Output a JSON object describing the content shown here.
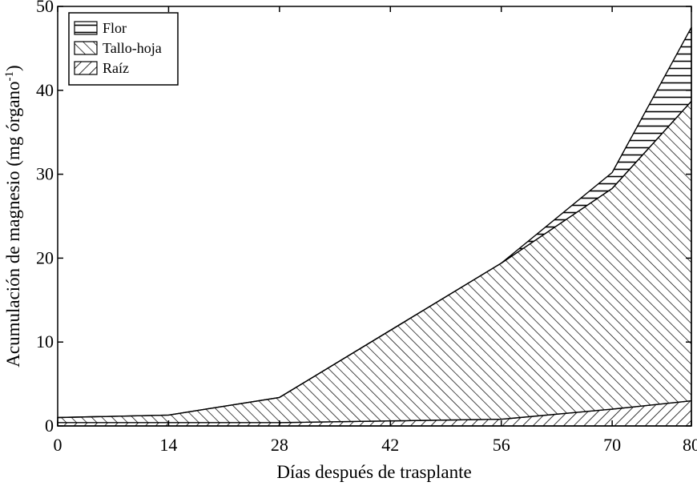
{
  "chart_data": {
    "type": "area",
    "stacked": true,
    "x": [
      0,
      14,
      28,
      56,
      70,
      80
    ],
    "series": [
      {
        "name": "Raíz",
        "values": [
          0.4,
          0.4,
          0.4,
          0.8,
          2.0,
          3.0
        ],
        "pattern": "diagonal-up"
      },
      {
        "name": "Tallo-hoja",
        "values": [
          0.6,
          0.9,
          3.0,
          18.6,
          26.3,
          35.7
        ],
        "pattern": "diagonal-down"
      },
      {
        "name": "Flor",
        "values": [
          0,
          0,
          0,
          0,
          1.9,
          8.8
        ],
        "pattern": "horizontal"
      }
    ],
    "ylabel_main": "Acumulación de magnesio (mg órgano",
    "ylabel_sup": "-1",
    "ylabel_end": ")",
    "xlabel": "Días después de trasplante",
    "xticks": [
      0,
      14,
      28,
      42,
      56,
      70,
      80
    ],
    "yticks": [
      0,
      10,
      20,
      30,
      40,
      50
    ],
    "xlim": [
      0,
      80
    ],
    "ylim": [
      0,
      50
    ],
    "legend_position": "top-left",
    "legend_order": [
      "Flor",
      "Tallo-hoja",
      "Raíz"
    ]
  }
}
